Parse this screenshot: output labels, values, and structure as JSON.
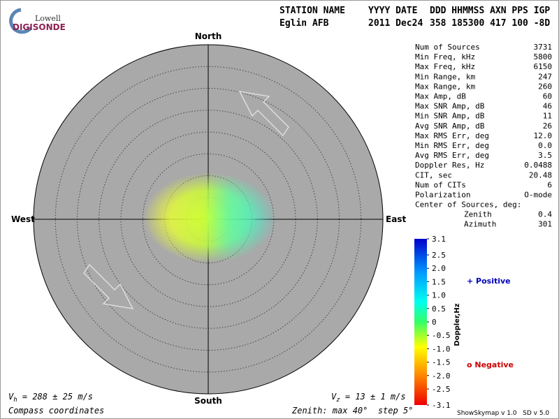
{
  "logo": {
    "top": "Lowell",
    "bottom": "DIGISONDE"
  },
  "header": {
    "columns": [
      "STATION NAME",
      "YYYY DATE",
      "DDD HHMMSS AXN PPS IGP"
    ],
    "values": [
      "Eglin AFB",
      "2011 Dec24",
      "358 185300 417 100 -8D"
    ]
  },
  "directions": {
    "north": "North",
    "south": "South",
    "east": "East",
    "west": "West"
  },
  "stats": [
    [
      "Num of Sources",
      "3731"
    ],
    [
      "Min Freq, kHz",
      "5800"
    ],
    [
      "Max Freq, kHz",
      "6150"
    ],
    [
      "Min Range, km",
      "247"
    ],
    [
      "Max Range, km",
      "260"
    ],
    [
      "Max Amp, dB",
      "60"
    ],
    [
      "Max SNR Amp, dB",
      "46"
    ],
    [
      "Min SNR Amp, dB",
      "11"
    ],
    [
      "Avg SNR Amp, dB",
      "26"
    ],
    [
      "Max RMS Err, deg",
      "12.0"
    ],
    [
      "Min RMS Err, deg",
      "0.0"
    ],
    [
      "Avg RMS Err, deg",
      "3.5"
    ],
    [
      "Doppler Res, Hz",
      "0.0488"
    ],
    [
      "CIT, sec",
      "20.48"
    ],
    [
      "Num of CITs",
      "6"
    ],
    [
      "Polarization",
      "O-mode"
    ]
  ],
  "center": {
    "title": "Center of Sources, deg:",
    "rows": [
      [
        "Zenith",
        "0.4"
      ],
      [
        "Azimuth",
        "301"
      ]
    ]
  },
  "colorbar": {
    "title": "Doppler,Hz",
    "lim": [
      -3.1,
      3.1
    ],
    "ticks": [
      3.1,
      2.5,
      {
        "value": 2,
        "label": "2.0"
      },
      1.5,
      {
        "value": 1,
        "label": "1.0"
      },
      0.5,
      0,
      -0.5,
      {
        "value": -1,
        "label": "-1.0"
      },
      -1.5,
      {
        "value": -2,
        "label": "-2.0"
      },
      -2.5,
      -3.1
    ]
  },
  "legend": {
    "positive": "+ Positive",
    "negative": "o Negative"
  },
  "footer": {
    "vh": {
      "symbol": "V",
      "sub": "h",
      "text": " = 288 ± 25 m/s"
    },
    "vz": {
      "symbol": "V",
      "sub": "z",
      "text": " = 13 ± 1 m/s"
    },
    "coords": "Compass coordinates",
    "zenith": "Zenith: max 40°  step 5°",
    "version": "ShowSkymap v 1.0   SD v 5.0"
  }
}
